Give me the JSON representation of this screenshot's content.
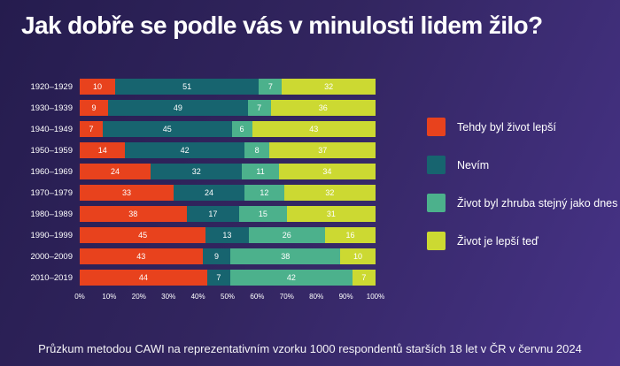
{
  "title": "Jak dobře se podle vás v minulosti lidem žilo?",
  "footer": "Průzkum metodou CAWI na reprezentativním vzorku 1000 respondentů starších 18 let v ČR v červnu 2024",
  "colors": {
    "background_dark": "#251c4e",
    "background_light": "#473388",
    "better_then": "#e8421d",
    "dont_know": "#17646f",
    "same_as_today": "#4cb18c",
    "better_now": "#ccd932"
  },
  "chart_data": {
    "type": "bar",
    "orientation": "horizontal",
    "stacked": true,
    "title": "Jak dobře se podle vás v minulosti lidem žilo?",
    "categories": [
      "1920–1929",
      "1930–1939",
      "1940–1949",
      "1950–1959",
      "1960–1969",
      "1970–1979",
      "1980–1989",
      "1990–1999",
      "2000–2009",
      "2010–2019"
    ],
    "series": [
      {
        "name": "Tehdy byl život lepší",
        "color": "#e8421d",
        "values": [
          10,
          9,
          7,
          14,
          24,
          33,
          38,
          45,
          43,
          44
        ]
      },
      {
        "name": "Nevím",
        "color": "#17646f",
        "values": [
          51,
          49,
          45,
          42,
          32,
          24,
          17,
          13,
          9,
          7
        ]
      },
      {
        "name": "Život byl zhruba stejný jako dnes",
        "color": "#4cb18c",
        "values": [
          7,
          7,
          6,
          8,
          11,
          12,
          15,
          26,
          38,
          42
        ]
      },
      {
        "name": "Život je lepší teď",
        "color": "#ccd932",
        "values": [
          32,
          36,
          43,
          37,
          34,
          32,
          31,
          16,
          10,
          7
        ]
      }
    ],
    "x_ticks": [
      "0%",
      "10%",
      "20%",
      "30%",
      "40%",
      "50%",
      "60%",
      "70%",
      "80%",
      "90%",
      "100%"
    ],
    "xlim": [
      0,
      100
    ],
    "grid": false,
    "legend_position": "right",
    "unit": "%"
  }
}
